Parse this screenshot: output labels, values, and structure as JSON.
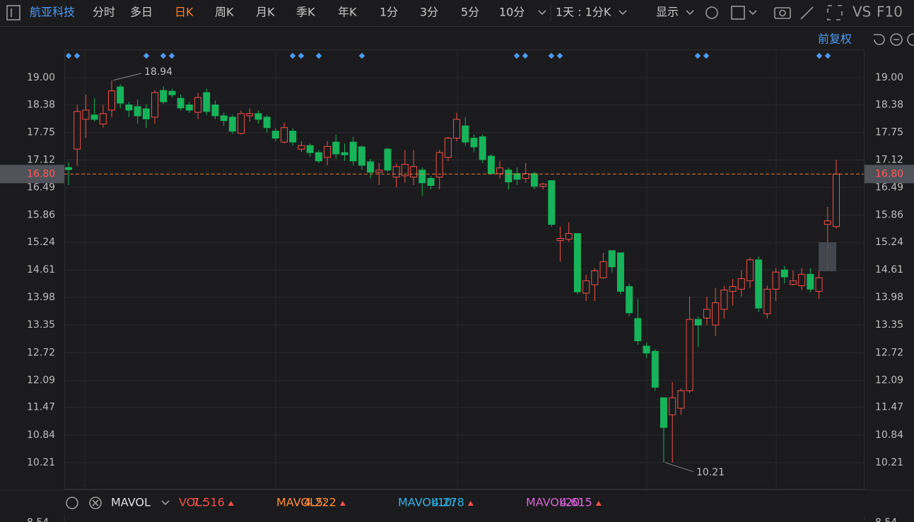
{
  "toolbar": {
    "stock_name": "航亚科技",
    "tabs": [
      "分时",
      "多日",
      "日K",
      "周K",
      "月K",
      "季K",
      "年K",
      "1分",
      "3分",
      "5分",
      "10分"
    ],
    "active_tab_index": 2,
    "period": "1天 : 1分K",
    "display": "显示",
    "vs": "VS",
    "f10": "F10"
  },
  "adjust_label": "前复权",
  "indicator_bar": {
    "name": "MAVOL",
    "items": [
      {
        "label": "VOL:",
        "value": 7.516,
        "color": "#f0504a"
      },
      {
        "label": "MAVOL5:",
        "value": 4.222,
        "color": "#ff8c3a"
      },
      {
        "label": "MAVOL10:",
        "value": 4.278,
        "color": "#2fb4e8"
      },
      {
        "label": "MAVOL20:",
        "value": 4.615,
        "color": "#d865d8"
      }
    ],
    "vol_axis_top": 8.54
  },
  "chart_data": {
    "type": "candlestick",
    "up_color": "#f0504a",
    "down_color": "#17b35a",
    "grid": true,
    "ylim": [
      9.61,
      19.63
    ],
    "yticks": [
      {
        "value": 19,
        "label": "19.00"
      },
      18.38,
      17.75,
      17.12,
      16.49,
      15.86,
      15.24,
      14.61,
      13.98,
      13.35,
      12.72,
      12.09,
      11.47,
      10.84,
      10.21
    ],
    "last_price": {
      "value": 16.8,
      "label": "16.80"
    },
    "max_price": 18.94,
    "min_price": 10.21,
    "open": [
      16.95,
      17.37,
      18.05,
      18.15,
      17.94,
      18.26,
      18.79,
      18.38,
      18.34,
      18.29,
      18.1,
      18.71,
      18.69,
      18.53,
      18.38,
      18.21,
      18.66,
      18.38,
      18.13,
      18.1,
      17.73,
      18.13,
      18.18,
      18.1,
      17.78,
      17.53,
      17.78,
      17.37,
      17.45,
      17.29,
      17.18,
      17.53,
      17.29,
      17.53,
      17.42,
      17.08,
      16.84,
      17.37,
      16.73,
      16.76,
      16.73,
      16.89,
      16.7,
      16.73,
      17.18,
      17.62,
      17.9,
      17.62,
      17.65,
      17.21,
      16.81,
      16.89,
      16.81,
      16.7,
      16.81,
      16.52,
      16.65,
      15.28,
      15.31,
      15.44,
      14.08,
      14.27,
      14.43,
      15.05,
      15.0,
      14.23,
      13.5,
      12.87,
      12.75,
      11.69,
      11.3,
      11.45,
      11.85,
      13.48,
      13.51,
      13.35,
      13.71,
      14.12,
      14.17,
      14.36,
      14.84,
      13.61,
      14.17,
      14.61,
      14.28,
      14.25,
      14.51,
      14.12,
      15.65,
      15.6
    ],
    "high": [
      17.07,
      18.38,
      18.61,
      18.53,
      18.38,
      18.94,
      18.85,
      18.45,
      18.5,
      18.4,
      18.72,
      18.8,
      18.75,
      18.62,
      18.45,
      18.65,
      18.75,
      18.48,
      18.2,
      18.15,
      18.25,
      18.3,
      18.25,
      18.15,
      17.85,
      17.98,
      17.85,
      17.55,
      17.5,
      17.35,
      17.55,
      17.7,
      17.5,
      17.65,
      17.45,
      17.15,
      17.05,
      17.4,
      17.05,
      17.35,
      17.35,
      16.95,
      16.75,
      17.35,
      17.65,
      18.2,
      18.1,
      17.7,
      17.7,
      17.25,
      17.1,
      16.95,
      16.95,
      17.05,
      16.85,
      16.6,
      16.65,
      15.6,
      15.7,
      15.44,
      14.5,
      14.65,
      15.0,
      15.05,
      15.0,
      14.3,
      13.95,
      12.95,
      12.8,
      11.7,
      12.05,
      11.9,
      14.0,
      13.55,
      14.0,
      14.2,
      14.25,
      14.4,
      14.6,
      14.9,
      14.92,
      14.25,
      14.65,
      14.7,
      14.6,
      14.65,
      14.65,
      14.6,
      16.05,
      17.12
    ],
    "low": [
      16.55,
      16.99,
      17.62,
      18.0,
      17.86,
      18.1,
      18.3,
      18.1,
      17.95,
      17.85,
      17.95,
      18.4,
      18.55,
      18.25,
      18.2,
      18.05,
      18.15,
      18.05,
      17.9,
      17.72,
      17.7,
      18.0,
      17.95,
      17.75,
      17.55,
      17.5,
      17.45,
      17.3,
      17.2,
      17.05,
      17.0,
      17.15,
      17.1,
      17.0,
      16.9,
      16.7,
      16.55,
      16.85,
      16.5,
      16.6,
      16.55,
      16.3,
      16.45,
      16.45,
      17.1,
      17.55,
      17.45,
      17.3,
      17.05,
      16.8,
      16.7,
      16.45,
      16.55,
      16.6,
      16.45,
      16.45,
      15.6,
      14.8,
      15.25,
      14.05,
      13.9,
      13.9,
      14.4,
      14.55,
      14.05,
      13.55,
      12.9,
      12.6,
      11.85,
      10.21,
      10.21,
      11.3,
      11.8,
      12.85,
      13.35,
      13.1,
      13.5,
      13.8,
      14.0,
      14.2,
      13.65,
      13.5,
      13.9,
      14.3,
      14.25,
      14.15,
      14.1,
      13.95,
      14.6,
      15.55
    ],
    "close": [
      16.9,
      18.23,
      18.26,
      18.05,
      18.18,
      18.7,
      18.42,
      18.26,
      18.13,
      18.06,
      18.66,
      18.45,
      18.61,
      18.31,
      18.26,
      18.55,
      18.23,
      18.13,
      18.02,
      17.78,
      18.18,
      18.18,
      18.05,
      17.86,
      17.62,
      17.86,
      17.53,
      17.45,
      17.29,
      17.1,
      17.43,
      17.26,
      17.24,
      17.1,
      17.0,
      16.84,
      16.89,
      16.89,
      16.97,
      17.02,
      16.97,
      16.6,
      16.54,
      17.29,
      17.62,
      18.05,
      17.53,
      17.42,
      17.13,
      16.81,
      16.94,
      16.62,
      16.68,
      16.81,
      16.52,
      16.57,
      15.65,
      15.33,
      15.44,
      14.11,
      14.36,
      14.59,
      14.8,
      14.68,
      14.12,
      13.63,
      12.99,
      12.71,
      11.93,
      11.01,
      11.69,
      11.85,
      13.48,
      13.35,
      13.71,
      13.86,
      14.15,
      14.23,
      14.41,
      14.84,
      13.74,
      14.17,
      14.56,
      14.45,
      14.36,
      14.51,
      14.17,
      14.43,
      15.73,
      16.8
    ]
  }
}
